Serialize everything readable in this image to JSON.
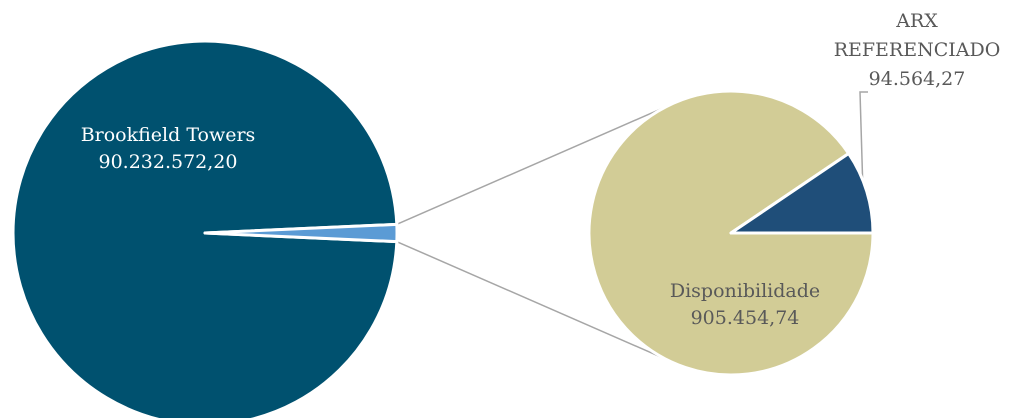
{
  "chart_data": {
    "type": "pie",
    "subtype": "pie-of-pie",
    "title": "",
    "main_pie": {
      "slices": [
        {
          "label": "Brookfield Towers",
          "value_text": "90.232.572,20",
          "value": 90232572.2,
          "color": "#00516f"
        },
        {
          "label": "",
          "value_text": "",
          "value": 1000019.01,
          "color": "#5b9bd5",
          "exploded_into_secondary": true
        }
      ]
    },
    "secondary_pie": {
      "slices": [
        {
          "label": "Disponibilidade",
          "value_text": "905.454,74",
          "value": 905454.74,
          "color": "#d2cc96"
        },
        {
          "label": "ARX REFERENCIADO",
          "label_lines": [
            "ARX",
            "REFERENCIADO"
          ],
          "value_text": "94.564,27",
          "value": 94564.27,
          "color": "#1f4e79"
        }
      ]
    },
    "connector_color": "#a6a6a6",
    "legend": "none",
    "grid": false
  }
}
